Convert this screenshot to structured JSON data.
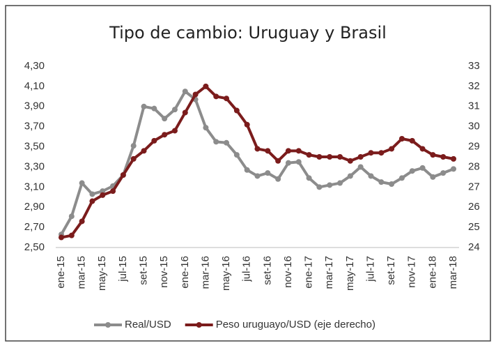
{
  "chart_data": {
    "type": "line",
    "title": "Tipo de cambio: Uruguay y Brasil",
    "categories": [
      "ene-15",
      null,
      "mar-15",
      null,
      "may-15",
      null,
      "jul-15",
      null,
      "set-15",
      null,
      "nov-15",
      null,
      "ene-16",
      null,
      "mar-16",
      null,
      "may-16",
      null,
      "jul-16",
      null,
      "set-16",
      null,
      "nov-16",
      null,
      "ene-17",
      null,
      "mar-17",
      null,
      "may-17",
      null,
      "jul-17",
      null,
      "set-17",
      null,
      "nov-17",
      null,
      "ene-18",
      null,
      "mar-18"
    ],
    "series": [
      {
        "name": "Real/USD",
        "color": "#8c8c8c",
        "values": [
          2.63,
          2.81,
          3.14,
          3.03,
          3.06,
          3.11,
          3.22,
          3.51,
          3.9,
          3.88,
          3.78,
          3.87,
          4.05,
          3.97,
          3.69,
          3.55,
          3.54,
          3.42,
          3.27,
          3.21,
          3.24,
          3.18,
          3.34,
          3.35,
          3.19,
          3.1,
          3.12,
          3.14,
          3.21,
          3.3,
          3.21,
          3.15,
          3.13,
          3.19,
          3.26,
          3.29,
          3.2,
          3.24,
          3.28
        ]
      },
      {
        "name": "Peso uruguayo/USD (eje derecho)",
        "color": "#7b1c1c",
        "axis": "y2",
        "values": [
          24.5,
          24.6,
          25.3,
          26.3,
          26.6,
          26.8,
          27.6,
          28.4,
          28.8,
          29.3,
          29.6,
          29.8,
          30.7,
          31.6,
          32.0,
          31.5,
          31.4,
          30.8,
          30.1,
          28.9,
          28.8,
          28.3,
          28.8,
          28.8,
          28.6,
          28.5,
          28.5,
          28.5,
          28.3,
          28.5,
          28.7,
          28.7,
          28.9,
          29.4,
          29.3,
          28.9,
          28.6,
          28.5,
          28.4
        ]
      }
    ],
    "ylim": [
      2.5,
      4.3
    ],
    "yticks": [
      {
        "value": 2.5,
        "label": "2,50"
      },
      {
        "value": 2.7,
        "label": "2,70"
      },
      {
        "value": 2.9,
        "label": "2,90"
      },
      {
        "value": 3.1,
        "label": "3,10"
      },
      {
        "value": 3.3,
        "label": "3,30"
      },
      {
        "value": 3.5,
        "label": "3,50"
      },
      {
        "value": 3.7,
        "label": "3,70"
      },
      {
        "value": 3.9,
        "label": "3,90"
      },
      {
        "value": 4.1,
        "label": "4,10"
      },
      {
        "value": 4.3,
        "label": "4,30"
      }
    ],
    "y2lim": [
      24,
      33
    ],
    "y2ticks": [
      24,
      25,
      26,
      27,
      28,
      29,
      30,
      31,
      32,
      33
    ],
    "legend": "bottom"
  }
}
